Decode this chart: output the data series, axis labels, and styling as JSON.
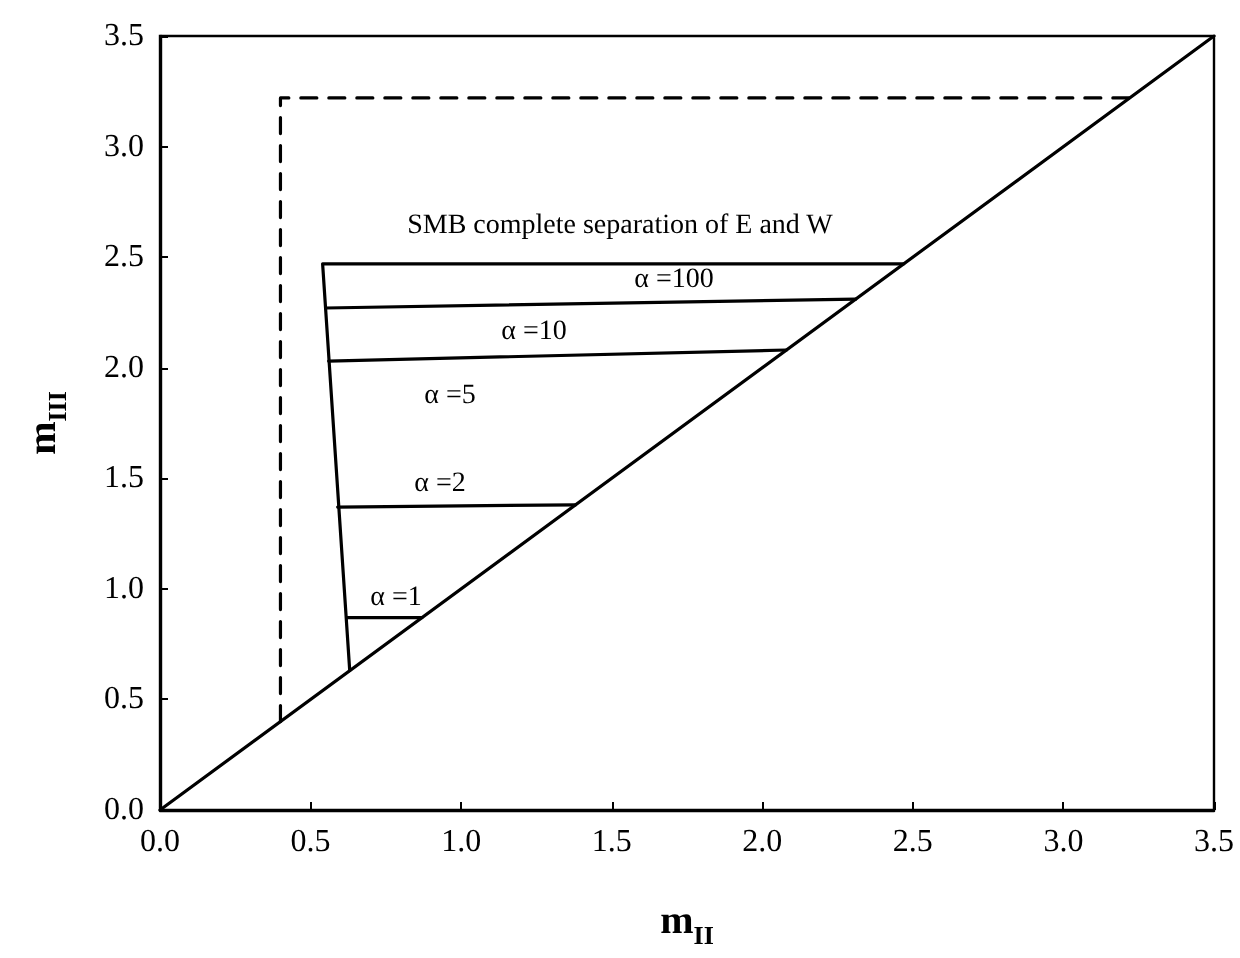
{
  "chart_data": {
    "type": "line",
    "xlabel": "m$_{II}$",
    "ylabel": "m$_{III}$",
    "xlim": [
      0,
      3.5
    ],
    "ylim": [
      0,
      3.5
    ],
    "xticks": [
      {
        "value": 0,
        "label": "0.0"
      },
      {
        "value": 0.5,
        "label": "0.5"
      },
      {
        "value": 1,
        "label": "1.0"
      },
      {
        "value": 1.5,
        "label": "1.5"
      },
      {
        "value": 2,
        "label": "2.0"
      },
      {
        "value": 2.5,
        "label": "2.5"
      },
      {
        "value": 3,
        "label": "3.0"
      },
      {
        "value": 3.5,
        "label": "3.5"
      }
    ],
    "yticks": [
      {
        "value": 0,
        "label": "0.0"
      },
      {
        "value": 0.5,
        "label": "0.5"
      },
      {
        "value": 1,
        "label": "1.0"
      },
      {
        "value": 1.5,
        "label": "1.5"
      },
      {
        "value": 2,
        "label": "2.0"
      },
      {
        "value": 2.5,
        "label": "2.5"
      },
      {
        "value": 3,
        "label": "3.0"
      },
      {
        "value": 3.5,
        "label": "3.5"
      }
    ],
    "marker": "none",
    "grid": false,
    "series": [
      {
        "color": "#000000",
        "x": [
          0,
          3.5
        ],
        "values": [
          0,
          3.5
        ]
      },
      {
        "color": "#000000",
        "line_style": "dashed",
        "x": [
          0.4,
          0.4,
          3.22
        ],
        "values": [
          0.4,
          3.22,
          3.22
        ]
      },
      {
        "color": "#000000",
        "x": [
          0.63,
          0.54,
          2.47
        ],
        "values": [
          0.63,
          2.47,
          2.47
        ]
      },
      {
        "color": "#000000",
        "x": [
          0.55,
          2.31
        ],
        "values": [
          2.27,
          2.31
        ]
      },
      {
        "color": "#000000",
        "x": [
          0.56,
          2.08
        ],
        "values": [
          2.03,
          2.08
        ]
      },
      {
        "color": "#000000",
        "x": [
          0.59,
          1.38
        ],
        "values": [
          1.37,
          1.38
        ]
      },
      {
        "color": "#000000",
        "x": [
          0.62,
          0.87
        ],
        "values": [
          0.87,
          0.87
        ]
      }
    ],
    "annotations": [
      "SMB complete separation of E and W",
      "α =100",
      "α =10",
      "α =5",
      "α =2",
      "α =1"
    ]
  }
}
